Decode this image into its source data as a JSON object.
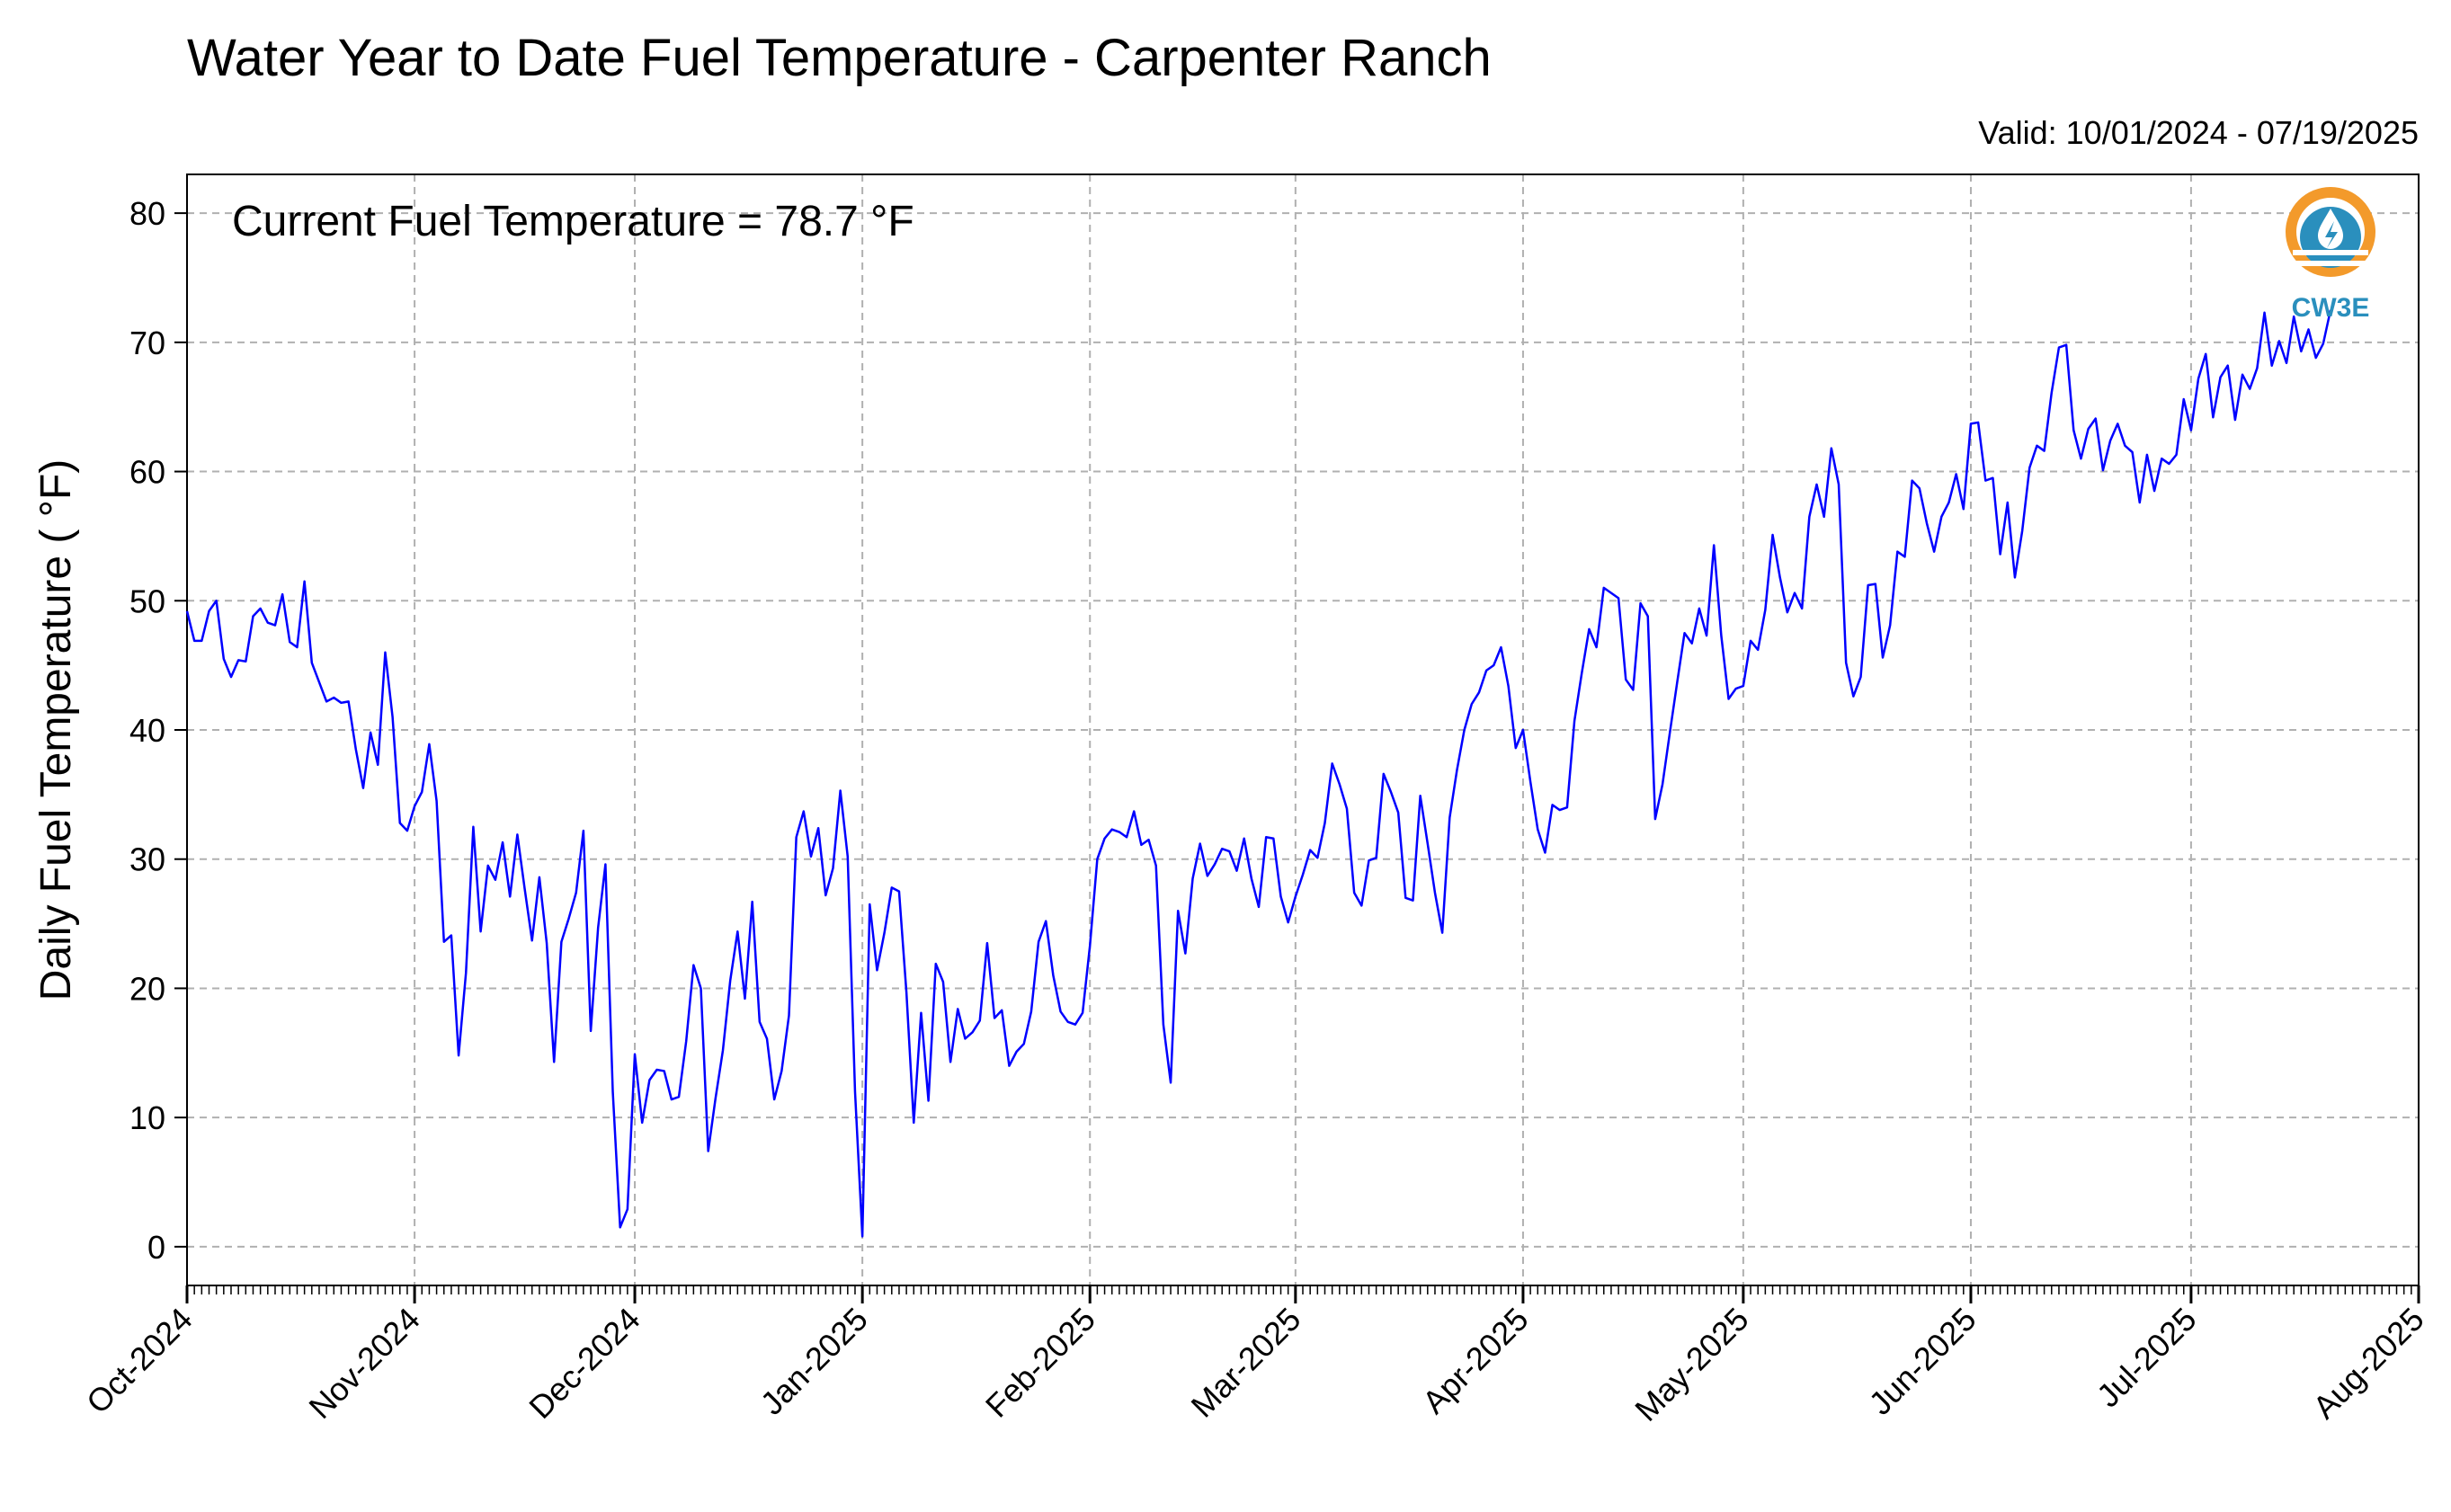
{
  "chart_data": {
    "type": "line",
    "title": "Water Year to Date Fuel Temperature - Carpenter Ranch",
    "subtitle": "Valid: 10/01/2024 - 07/19/2025",
    "annotation": "Current Fuel Temperature = 78.7 °F",
    "xlabel": "",
    "ylabel": "Daily Fuel Temperature ( °F)",
    "ylim": [
      -3,
      83
    ],
    "xlim": [
      "2024-10-01",
      "2025-08-01"
    ],
    "grid": true,
    "yticks": [
      0,
      10,
      20,
      30,
      40,
      50,
      60,
      70,
      80
    ],
    "xticks": [
      {
        "date": "2024-10-01",
        "label": "Oct-2024"
      },
      {
        "date": "2024-11-01",
        "label": "Nov-2024"
      },
      {
        "date": "2024-12-01",
        "label": "Dec-2024"
      },
      {
        "date": "2025-01-01",
        "label": "Jan-2025"
      },
      {
        "date": "2025-02-01",
        "label": "Feb-2025"
      },
      {
        "date": "2025-03-01",
        "label": "Mar-2025"
      },
      {
        "date": "2025-04-01",
        "label": "Apr-2025"
      },
      {
        "date": "2025-05-01",
        "label": "May-2025"
      },
      {
        "date": "2025-06-01",
        "label": "Jun-2025"
      },
      {
        "date": "2025-07-01",
        "label": "Jul-2025"
      },
      {
        "date": "2025-08-01",
        "label": "Aug-2025"
      }
    ],
    "series": [
      {
        "color": "#0000ff",
        "start_date": "2024-10-01",
        "interval": "daily",
        "values": [
          49.2,
          46.9,
          46.9,
          49.2,
          50.0,
          45.5,
          44.1,
          45.4,
          45.3,
          48.8,
          49.4,
          48.3,
          48.1,
          50.5,
          46.8,
          46.4,
          51.5,
          45.2,
          43.7,
          42.2,
          42.5,
          42.1,
          42.2,
          38.5,
          35.5,
          39.8,
          37.3,
          46.0,
          41.0,
          32.8,
          32.2,
          34.1,
          35.2,
          38.9,
          34.5,
          23.6,
          24.1,
          14.8,
          21.2,
          32.5,
          24.4,
          29.5,
          28.4,
          31.3,
          27.1,
          31.9,
          27.7,
          23.7,
          28.6,
          23.5,
          14.3,
          23.6,
          25.4,
          27.4,
          32.2,
          16.7,
          24.7,
          29.6,
          12.0,
          1.5,
          2.9,
          14.9,
          9.6,
          12.9,
          13.7,
          13.6,
          11.4,
          11.6,
          15.9,
          21.8,
          20.0,
          7.4,
          11.5,
          15.2,
          20.6,
          24.4,
          19.2,
          26.7,
          17.4,
          16.1,
          11.4,
          13.6,
          17.9,
          31.7,
          33.7,
          30.2,
          32.4,
          27.2,
          29.3,
          35.3,
          30.2,
          12.0,
          0.8,
          26.5,
          21.4,
          24.3,
          27.8,
          27.5,
          19.7,
          9.6,
          18.1,
          11.3,
          21.9,
          20.5,
          14.3,
          18.4,
          16.1,
          16.6,
          17.5,
          23.5,
          17.7,
          18.3,
          14.0,
          15.1,
          15.7,
          18.2,
          23.6,
          25.2,
          21.0,
          18.2,
          17.4,
          17.2,
          18.1,
          23.3,
          30.0,
          31.6,
          32.3,
          32.1,
          31.7,
          33.7,
          31.1,
          31.5,
          29.5,
          17.2,
          12.7,
          26.0,
          22.7,
          28.5,
          31.2,
          28.7,
          29.6,
          30.8,
          30.6,
          29.1,
          31.6,
          28.5,
          26.3,
          31.7,
          31.6,
          27.1,
          25.1,
          27.1,
          28.8,
          30.7,
          30.1,
          32.8,
          37.4,
          35.8,
          33.9,
          27.4,
          26.4,
          29.9,
          30.1,
          36.6,
          35.2,
          33.6,
          27.0,
          26.8,
          34.9,
          31.2,
          27.4,
          24.3,
          33.2,
          36.9,
          40.0,
          42.0,
          42.9,
          44.6,
          45.0,
          46.4,
          43.4,
          38.6,
          40.0,
          36.0,
          32.3,
          30.5,
          34.2,
          33.8,
          34.0,
          40.7,
          44.4,
          47.8,
          46.4,
          51.0,
          50.6,
          50.2,
          43.9,
          43.1,
          49.8,
          48.8,
          33.1,
          35.8,
          39.8,
          43.7,
          47.5,
          46.7,
          49.4,
          47.3,
          54.3,
          47.3,
          42.4,
          43.2,
          43.4,
          46.9,
          46.2,
          49.3,
          55.1,
          51.8,
          49.1,
          50.6,
          49.4,
          56.5,
          59.0,
          56.5,
          61.8,
          59.0,
          45.2,
          42.6,
          44.1,
          51.2,
          51.3,
          45.6,
          48.1,
          53.8,
          53.4,
          59.3,
          58.7,
          56.0,
          53.8,
          56.5,
          57.6,
          59.8,
          57.1,
          63.7,
          63.8,
          59.3,
          59.5,
          53.6,
          57.6,
          51.8,
          55.4,
          60.3,
          62.0,
          61.6,
          66.1,
          69.6,
          69.8,
          63.2,
          61.0,
          63.3,
          64.1,
          60.1,
          62.4,
          63.7,
          62.0,
          61.5,
          57.6,
          61.3,
          58.5,
          61.0,
          60.6,
          61.3,
          65.6,
          63.2,
          67.2,
          69.1,
          64.2,
          67.3,
          68.2,
          64.0,
          67.5,
          66.4,
          68.0,
          72.3,
          68.2,
          70.1,
          68.4,
          72.0,
          69.3,
          71.0,
          68.8,
          69.9,
          72.5
        ]
      }
    ]
  },
  "logo": {
    "text": "CW3E",
    "colors": {
      "orange": "#f39a2b",
      "teal": "#2a8fbd"
    }
  },
  "colors": {
    "line": "#0000ff",
    "grid": "#b0b0b0",
    "axis": "#000000"
  }
}
